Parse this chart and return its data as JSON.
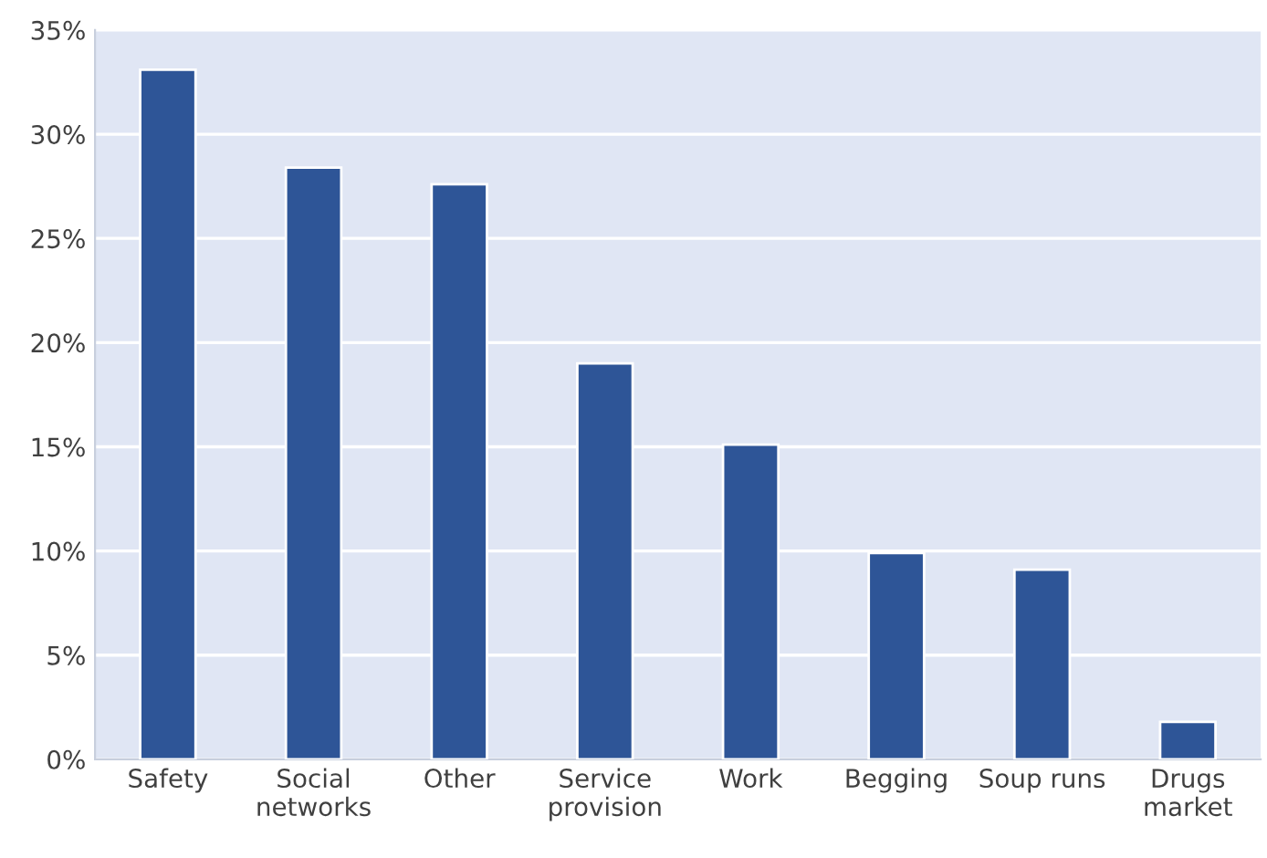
{
  "chart_data": {
    "type": "bar",
    "categories": [
      "Safety",
      "Social\nnetworks",
      "Other",
      "Service\nprovision",
      "Work",
      "Begging",
      "Soup runs",
      "Drugs\nmarket"
    ],
    "values": [
      33.1,
      28.4,
      27.6,
      19.0,
      15.1,
      9.9,
      9.1,
      1.8
    ],
    "color": "#2e5597",
    "ylim": [
      0,
      35
    ],
    "yticks": [
      {
        "value": 0,
        "label": "0%"
      },
      {
        "value": 5,
        "label": "5%"
      },
      {
        "value": 10,
        "label": "10%"
      },
      {
        "value": 15,
        "label": "15%"
      },
      {
        "value": 20,
        "label": "20%"
      },
      {
        "value": 25,
        "label": "25%"
      },
      {
        "value": 30,
        "label": "30%"
      },
      {
        "value": 35,
        "label": "35%"
      }
    ],
    "grid": "y"
  }
}
